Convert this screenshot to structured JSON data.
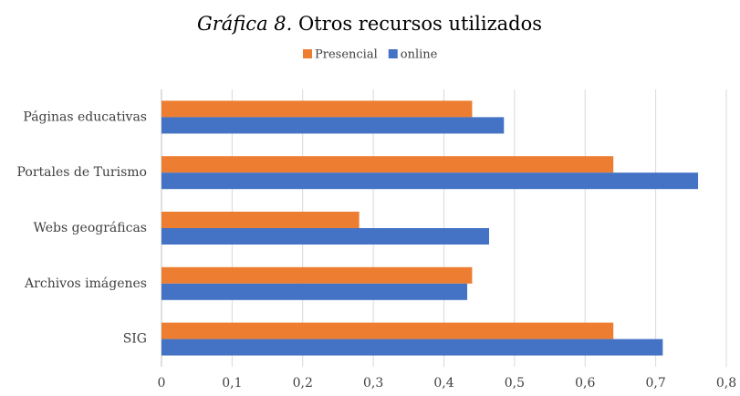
{
  "chart_data": {
    "type": "hbar",
    "title_number": "Gráfica 8.",
    "title": "Otros recursos utilizados",
    "categories": [
      "Páginas educativas",
      "Portales de Turismo",
      "Webs geográficas",
      "Archivos imágenes",
      "SIG"
    ],
    "series": [
      {
        "name": "Presencial",
        "color": "#ed7d31",
        "values": [
          0.44,
          0.64,
          0.28,
          0.44,
          0.64
        ]
      },
      {
        "name": "online",
        "color": "#4472c4",
        "values": [
          0.485,
          0.76,
          0.464,
          0.433,
          0.71
        ]
      }
    ],
    "xlim": [
      0,
      0.8
    ],
    "xticks": [
      0,
      {
        "value": 0.1,
        "label": "0,1"
      },
      {
        "value": 0.2,
        "label": "0,2"
      },
      {
        "value": 0.3,
        "label": "0,3"
      },
      {
        "value": 0.4,
        "label": "0,4"
      },
      {
        "value": 0.5,
        "label": "0,5"
      },
      {
        "value": 0.6,
        "label": "0,6"
      },
      {
        "value": 0.7,
        "label": "0,7"
      },
      {
        "value": 0.8,
        "label": "0,8"
      }
    ],
    "grid": true,
    "legend": "top"
  }
}
